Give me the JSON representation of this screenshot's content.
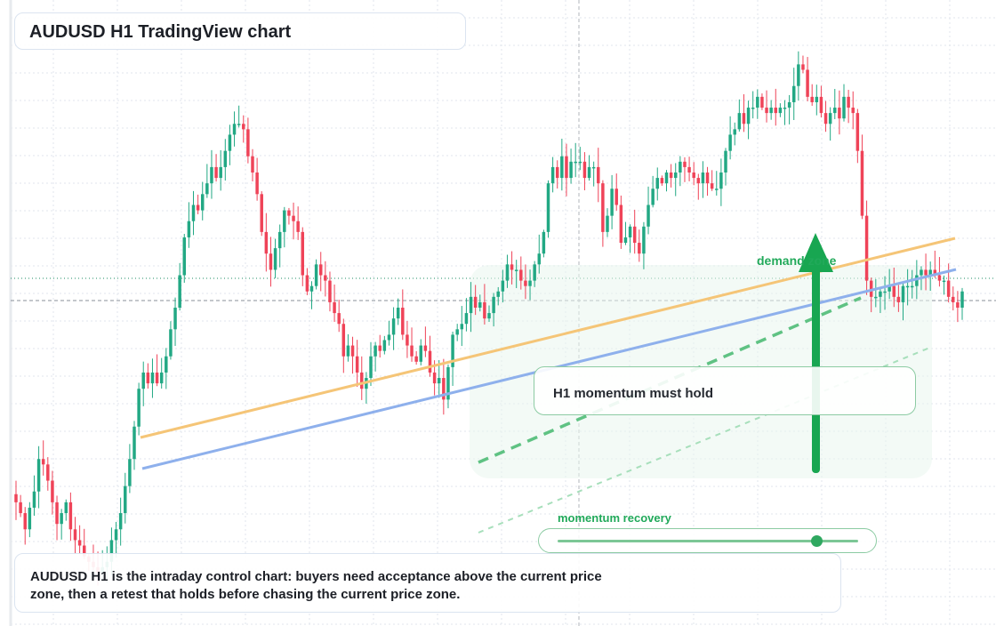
{
  "header": {
    "title": "AUDUSD H1 TradingView chart"
  },
  "annotations": {
    "demand_zone_label": "demand zone",
    "note": "H1 momentum must hold",
    "momentum_label": "momentum recovery",
    "momentum_level": 0.86
  },
  "caption": {
    "text": "AUDUSD H1 is the intraday control chart: buyers need acceptance above the current price zone, then a retest that holds before chasing the current price zone."
  },
  "colors": {
    "bull": "#22a884",
    "bear": "#ef4358",
    "trendline_orange": "#f5c577",
    "trendline_blue": "#8eb0ec",
    "signal_green": "#18a651"
  },
  "chart_data": {
    "type": "candlestick",
    "symbol": "AUDUSD",
    "timeframe": "H1",
    "note": "price scale not printed; OHLC values given in relative index units (0 = chart bottom, 100 = chart top)",
    "ylim": [
      0,
      100
    ],
    "closes": [
      14,
      12,
      9,
      13,
      16,
      22,
      21,
      18,
      14,
      10,
      12,
      14,
      9,
      7,
      6,
      4,
      3,
      2,
      1,
      2,
      3,
      7,
      9,
      12,
      17,
      22,
      28,
      35,
      38,
      36,
      38,
      36,
      38,
      41,
      46,
      50,
      56,
      63,
      66,
      69,
      68,
      71,
      73,
      76,
      74,
      76,
      79,
      82,
      84,
      84,
      83,
      78,
      75,
      71,
      64,
      60,
      57,
      61,
      64,
      68,
      67,
      66,
      64,
      56,
      53,
      54,
      58,
      56,
      55,
      51,
      49,
      47,
      41,
      43,
      41,
      38,
      35,
      37,
      41,
      43,
      42,
      44,
      45,
      48,
      50,
      45,
      43,
      41,
      40,
      43,
      42,
      38,
      36,
      37,
      33,
      39,
      45,
      46,
      47,
      49,
      52,
      50,
      51,
      48,
      49,
      52,
      53,
      55,
      58,
      57,
      57,
      55,
      54,
      55,
      58,
      60,
      64,
      73,
      76,
      74,
      78,
      74,
      77,
      77,
      77,
      74,
      76,
      76,
      73,
      64,
      67,
      72,
      69,
      62,
      63,
      65,
      62,
      60,
      65,
      69,
      72,
      74,
      73,
      75,
      74,
      75,
      77,
      76,
      75,
      74,
      73,
      75,
      73,
      72,
      72,
      75,
      79,
      82,
      83,
      86,
      84,
      87,
      87,
      89,
      87,
      86,
      87,
      86,
      87,
      87,
      88,
      91,
      95,
      94,
      89,
      88,
      89,
      86,
      84,
      86,
      87,
      85,
      89,
      87,
      86,
      79,
      67,
      55,
      52,
      52,
      53,
      53,
      54,
      52,
      51,
      54,
      54,
      54,
      56,
      57,
      56,
      57,
      56,
      55,
      55,
      52,
      51,
      50,
      53
    ]
  }
}
